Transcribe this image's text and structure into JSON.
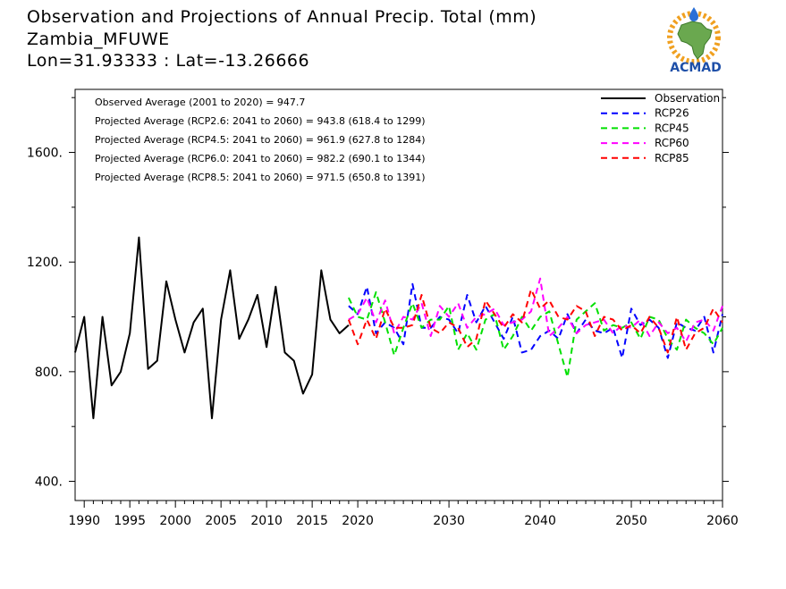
{
  "header": {
    "title": "Observation and Projections of Annual Precip. Total (mm)",
    "station": "Zambia_MFUWE",
    "location": "Lon=31.93333 : Lat=-13.26666"
  },
  "logo": {
    "text": "ACMAD",
    "colors": {
      "africa": "#6aa84f",
      "sun": "#f0a020",
      "drop": "#2a6fd6",
      "text": "#1e4fa8"
    }
  },
  "stats": [
    "Observed Average (2001 to 2020) = 947.7",
    "Projected Average (RCP2.6: 2041 to 2060) = 943.8 (618.4 to 1299)",
    "Projected Average (RCP4.5: 2041 to 2060) = 961.9 (627.8 to 1284)",
    "Projected Average (RCP6.0: 2041 to 2060) = 982.2 (690.1 to 1344)",
    "Projected Average (RCP8.5: 2041 to 2060) = 971.5 (650.8 to 1391)"
  ],
  "chart_data": {
    "type": "line",
    "xlim": [
      1989,
      2060
    ],
    "ylim": [
      330,
      1830
    ],
    "x_ticks": [
      1990,
      1995,
      2000,
      2005,
      2010,
      2015,
      2020,
      2030,
      2040,
      2050,
      2060
    ],
    "y_ticks": [
      400,
      800,
      1200,
      1600
    ],
    "y_tick_labels": [
      "400.",
      "800.",
      "1200.",
      "1600."
    ],
    "grid": false,
    "legend": "top-right",
    "series": [
      {
        "name": "Observation",
        "color": "#000000",
        "style": "solid",
        "x": [
          1989,
          1990,
          1991,
          1992,
          1993,
          1994,
          1995,
          1996,
          1997,
          1998,
          1999,
          2000,
          2001,
          2002,
          2003,
          2004,
          2005,
          2006,
          2007,
          2008,
          2009,
          2010,
          2011,
          2012,
          2013,
          2014,
          2015,
          2016,
          2017,
          2018,
          2019
        ],
        "y": [
          870,
          1000,
          630,
          1000,
          750,
          800,
          940,
          1290,
          810,
          840,
          1130,
          990,
          870,
          980,
          1030,
          630,
          990,
          1170,
          920,
          990,
          1080,
          890,
          1110,
          870,
          840,
          720,
          790,
          1170,
          990,
          940,
          970
        ]
      },
      {
        "name": "RCP26",
        "color": "#0000ff",
        "style": "dashed",
        "x": [
          2019,
          2020,
          2021,
          2022,
          2023,
          2024,
          2025,
          2026,
          2027,
          2028,
          2029,
          2030,
          2031,
          2032,
          2033,
          2034,
          2035,
          2036,
          2037,
          2038,
          2039,
          2040,
          2041,
          2042,
          2043,
          2044,
          2045,
          2046,
          2047,
          2048,
          2049,
          2050,
          2051,
          2052,
          2053,
          2054,
          2055,
          2056,
          2057,
          2058,
          2059,
          2060
        ],
        "y": [
          1040,
          1010,
          1110,
          940,
          980,
          960,
          900,
          1120,
          960,
          960,
          1000,
          990,
          940,
          1080,
          980,
          1040,
          980,
          920,
          1000,
          870,
          880,
          930,
          950,
          920,
          1010,
          940,
          990,
          950,
          940,
          960,
          850,
          1030,
          970,
          990,
          960,
          850,
          980,
          960,
          950,
          1000,
          870,
          1010
        ]
      },
      {
        "name": "RCP45",
        "color": "#00e000",
        "style": "dashed",
        "x": [
          2019,
          2020,
          2021,
          2022,
          2023,
          2024,
          2025,
          2026,
          2027,
          2028,
          2029,
          2030,
          2031,
          2032,
          2033,
          2034,
          2035,
          2036,
          2037,
          2038,
          2039,
          2040,
          2041,
          2042,
          2043,
          2044,
          2045,
          2046,
          2047,
          2048,
          2049,
          2050,
          2051,
          2052,
          2053,
          2054,
          2055,
          2056,
          2057,
          2058,
          2059,
          2060
        ],
        "y": [
          1070,
          1000,
          990,
          1090,
          980,
          860,
          960,
          1050,
          960,
          990,
          990,
          1040,
          880,
          940,
          880,
          990,
          1010,
          880,
          930,
          1000,
          950,
          1000,
          1020,
          900,
          780,
          990,
          1020,
          1050,
          950,
          970,
          960,
          980,
          920,
          1000,
          990,
          920,
          880,
          990,
          960,
          940,
          900,
          960
        ]
      },
      {
        "name": "RCP60",
        "color": "#ff00ff",
        "style": "dashed",
        "x": [
          2019,
          2020,
          2021,
          2022,
          2023,
          2024,
          2025,
          2026,
          2027,
          2028,
          2029,
          2030,
          2031,
          2032,
          2033,
          2034,
          2035,
          2036,
          2037,
          2038,
          2039,
          2040,
          2041,
          2042,
          2043,
          2044,
          2045,
          2046,
          2047,
          2048,
          2049,
          2050,
          2051,
          2052,
          2053,
          2054,
          2055,
          2056,
          2057,
          2058,
          2059,
          2060
        ],
        "y": [
          990,
          1010,
          1070,
          980,
          1060,
          940,
          1000,
          990,
          1050,
          930,
          1040,
          1000,
          1050,
          960,
          1000,
          1010,
          1030,
          970,
          980,
          990,
          1020,
          1140,
          930,
          960,
          1000,
          940,
          970,
          980,
          990,
          940,
          970,
          960,
          990,
          930,
          980,
          940,
          960,
          910,
          980,
          990,
          950,
          1040
        ]
      },
      {
        "name": "RCP85",
        "color": "#ff0000",
        "style": "dashed",
        "x": [
          2019,
          2020,
          2021,
          2022,
          2023,
          2024,
          2025,
          2026,
          2027,
          2028,
          2029,
          2030,
          2031,
          2032,
          2033,
          2034,
          2035,
          2036,
          2037,
          2038,
          2039,
          2040,
          2041,
          2042,
          2043,
          2044,
          2045,
          2046,
          2047,
          2048,
          2049,
          2050,
          2051,
          2052,
          2053,
          2054,
          2055,
          2056,
          2057,
          2058,
          2059,
          2060
        ],
        "y": [
          990,
          900,
          990,
          920,
          1030,
          960,
          960,
          970,
          1080,
          960,
          940,
          980,
          960,
          890,
          920,
          1060,
          1010,
          960,
          1010,
          980,
          1100,
          1030,
          1060,
          1000,
          990,
          1040,
          1020,
          930,
          1000,
          990,
          950,
          970,
          940,
          1000,
          960,
          870,
          1000,
          880,
          940,
          960,
          1030,
          980
        ]
      }
    ]
  }
}
